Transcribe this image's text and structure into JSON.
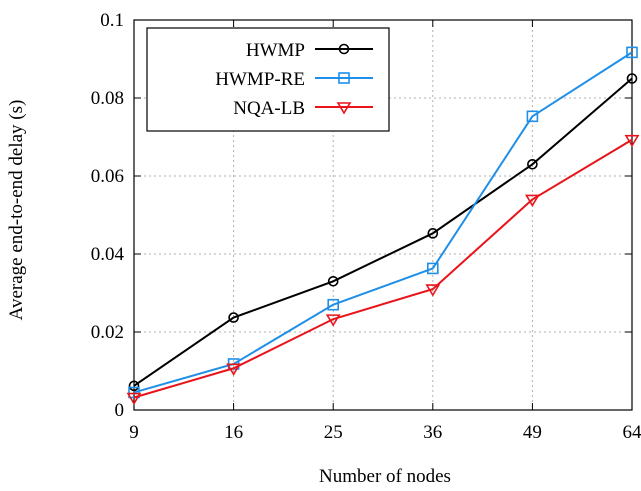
{
  "chart_data": {
    "type": "line",
    "xlabel": "Number of nodes",
    "ylabel": "Average end-to-end delay (s)",
    "categories": [
      "9",
      "16",
      "25",
      "36",
      "49",
      "64"
    ],
    "yticks": [
      "0",
      "0.02",
      "0.04",
      "0.06",
      "0.08",
      "0.1"
    ],
    "ylim": [
      0,
      0.1
    ],
    "grid": true,
    "legend_position": "top-left",
    "series": [
      {
        "name": "HWMP",
        "color": "#000000",
        "marker": "circle",
        "values": [
          0.0062,
          0.0237,
          0.033,
          0.0453,
          0.063,
          0.085
        ]
      },
      {
        "name": "HWMP-RE",
        "color": "#1f8fe8",
        "marker": "square",
        "values": [
          0.0045,
          0.0118,
          0.027,
          0.0363,
          0.0753,
          0.0917
        ]
      },
      {
        "name": "NQA-LB",
        "color": "#e8141a",
        "marker": "triangle-down",
        "values": [
          0.0032,
          0.0107,
          0.0233,
          0.031,
          0.054,
          0.0693
        ]
      }
    ]
  }
}
